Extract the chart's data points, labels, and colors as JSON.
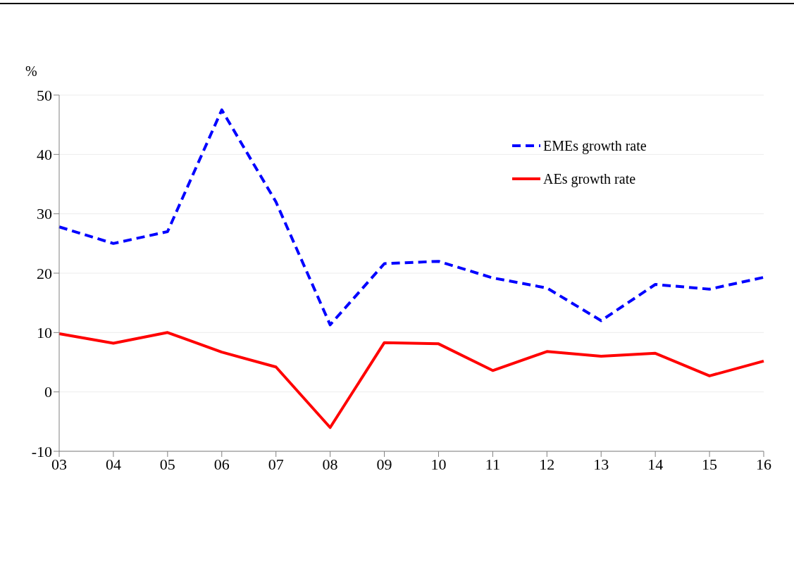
{
  "chart_data": {
    "type": "line",
    "ylabel": "%",
    "categories": [
      "03",
      "04",
      "05",
      "06",
      "07",
      "08",
      "09",
      "10",
      "11",
      "12",
      "13",
      "14",
      "15",
      "16"
    ],
    "series": [
      {
        "name": "EMEs growth rate",
        "color": "#0000ff",
        "line_style": "dashed",
        "values": [
          27.8,
          25.0,
          27.0,
          47.5,
          32.0,
          11.3,
          21.6,
          22.0,
          19.2,
          17.5,
          12.0,
          18.1,
          17.3,
          19.3
        ]
      },
      {
        "name": "AEs growth rate",
        "color": "#ff0000",
        "line_style": "solid",
        "values": [
          9.8,
          8.2,
          10.0,
          6.7,
          4.2,
          -6.0,
          8.3,
          8.1,
          3.6,
          6.8,
          6.0,
          6.5,
          2.7,
          5.2
        ]
      }
    ],
    "ylim": [
      -10,
      50
    ],
    "yticks": [
      -10,
      0,
      10,
      20,
      30,
      40,
      50
    ],
    "grid": "y",
    "legend": "top right",
    "marker": "none"
  }
}
